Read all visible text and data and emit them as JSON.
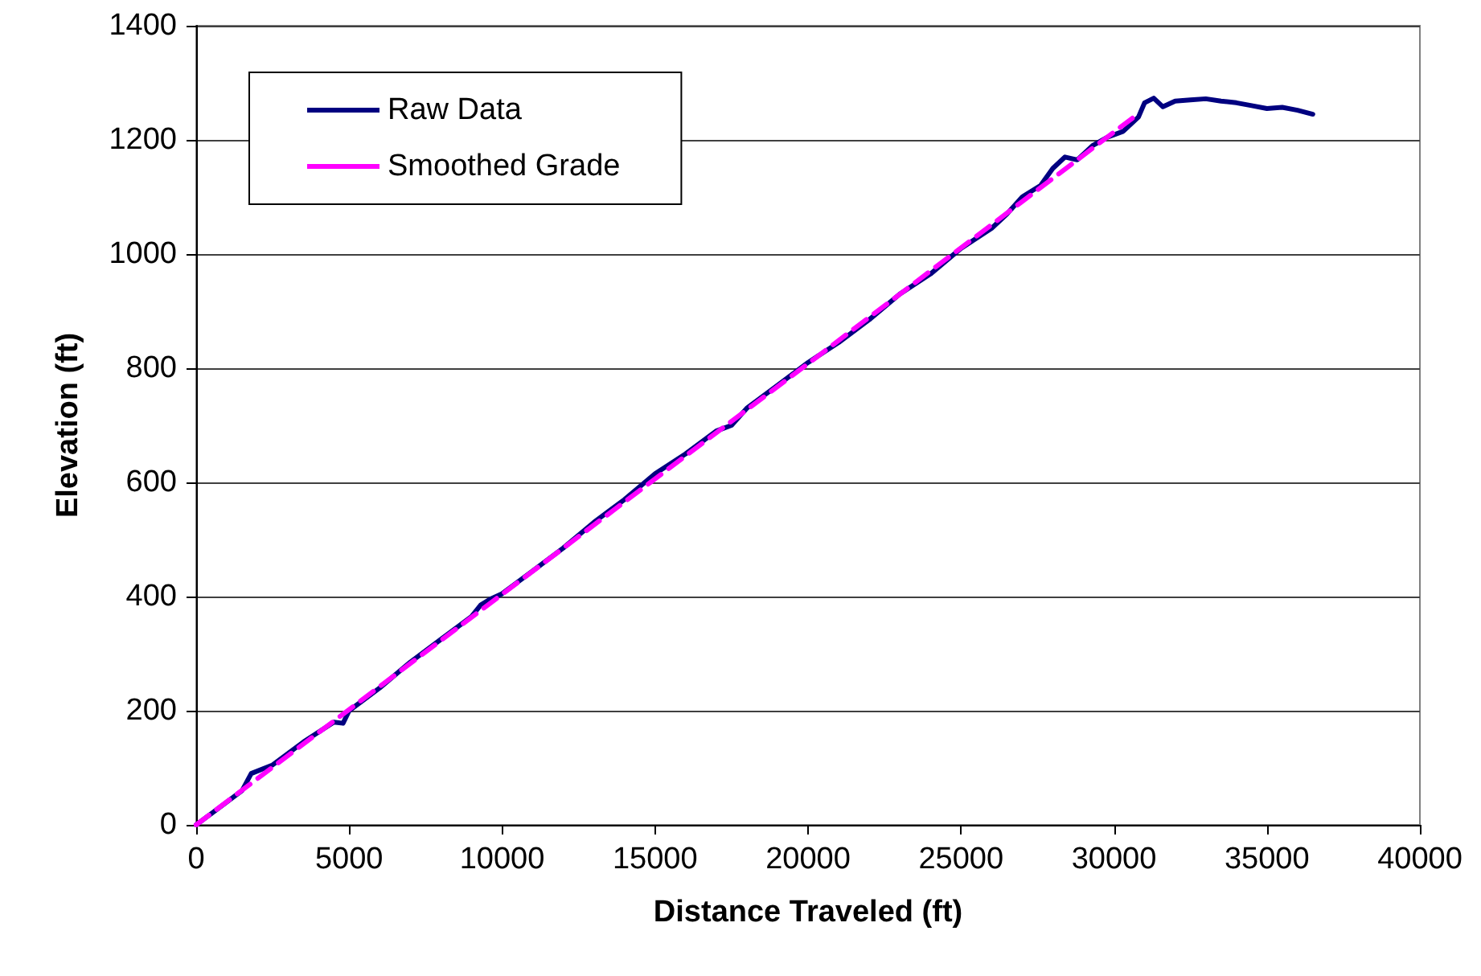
{
  "chart_data": {
    "type": "line",
    "xlabel": "Distance Traveled (ft)",
    "ylabel": "Elevation (ft)",
    "xlim": [
      0,
      40000
    ],
    "xticks": [
      0,
      5000,
      10000,
      15000,
      20000,
      25000,
      30000,
      35000,
      40000
    ],
    "ylim": [
      0,
      1400
    ],
    "yticks": [
      0,
      200,
      400,
      600,
      800,
      1000,
      1200,
      1400
    ],
    "grid": "y",
    "legend": "top left",
    "marker": "none",
    "series": [
      {
        "name": "Raw Data",
        "color": "#000080",
        "line_style": "solid",
        "x": [
          0,
          500,
          1000,
          1500,
          1800,
          2500,
          3500,
          4500,
          4800,
          5000,
          6000,
          7000,
          8000,
          9000,
          9300,
          9600,
          10000,
          11000,
          12000,
          13000,
          14000,
          15000,
          16000,
          17000,
          17500,
          18000,
          19000,
          20000,
          21000,
          22000,
          23000,
          24000,
          25000,
          26000,
          26500,
          27000,
          27600,
          28000,
          28400,
          28800,
          29300,
          29800,
          30300,
          30800,
          31000,
          31300,
          31600,
          32000,
          32500,
          33000,
          33500,
          34000,
          34500,
          35000,
          35500,
          36000,
          36500
        ],
        "values": [
          0,
          20,
          40,
          60,
          90,
          105,
          145,
          180,
          178,
          200,
          240,
          285,
          325,
          365,
          385,
          395,
          405,
          445,
          485,
          530,
          570,
          615,
          650,
          690,
          700,
          730,
          770,
          810,
          845,
          885,
          930,
          965,
          1010,
          1045,
          1070,
          1100,
          1120,
          1150,
          1170,
          1165,
          1190,
          1205,
          1215,
          1240,
          1265,
          1273,
          1258,
          1268,
          1270,
          1272,
          1268,
          1265,
          1260,
          1255,
          1257,
          1252,
          1245
        ]
      },
      {
        "name": "Smoothed Grade",
        "color": "#ff00ff",
        "line_style": "dashed",
        "x": [
          0,
          10000,
          20000,
          30600
        ],
        "values": [
          0,
          404,
          808,
          1238
        ]
      }
    ]
  }
}
